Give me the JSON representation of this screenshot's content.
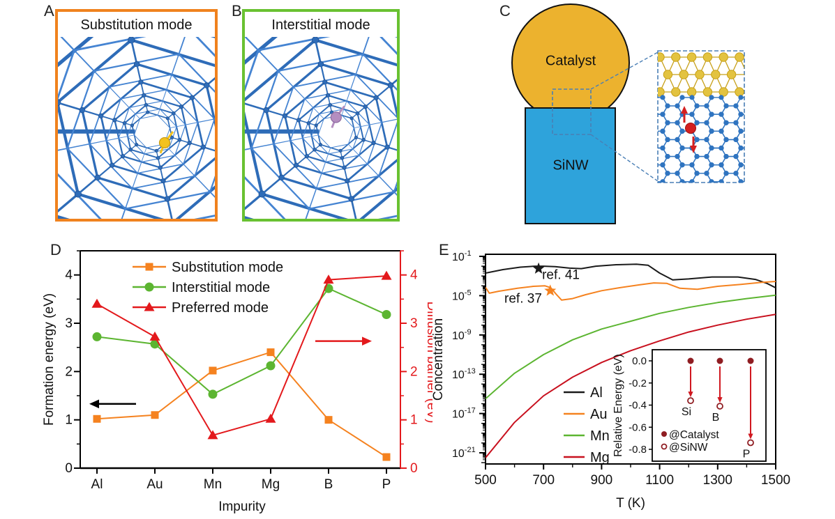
{
  "panels": {
    "a": {
      "label": "A",
      "title": "Substitution mode",
      "border_color": "#F0821E",
      "impurity_color": "#F2C21E",
      "impurity_edge": "#C79A10",
      "impurity_pos": [
        0.68,
        0.72
      ]
    },
    "b": {
      "label": "B",
      "title": "Interstitial mode",
      "border_color": "#69C131",
      "impurity_color": "#B48EC0",
      "impurity_edge": "#8E6BA0",
      "impurity_pos": [
        0.6,
        0.58
      ]
    },
    "c": {
      "label": "C",
      "catalyst_label": "Catalyst",
      "sinw_label": "SiNW",
      "catalyst_color": "#ECB22E",
      "sinw_color": "#2EA3DB",
      "lattice_gold": "#E3C340",
      "lattice_gold_edge": "#C7A018",
      "lattice_blue": "#2F74C0",
      "highlight_atom_color": "#D42020",
      "dashed_color": "#4A7FB5"
    },
    "d": {
      "label": "D"
    },
    "e": {
      "label": "E"
    }
  },
  "chart_data": [
    {
      "id": "panel-d",
      "type": "line",
      "categories": [
        "Al",
        "Au",
        "Mn",
        "Mg",
        "B",
        "P"
      ],
      "xlabel": "Impurity",
      "ylabel_left": "Formation energy (eV)",
      "ylabel_right": "Diffusion barrier (eV)",
      "ylim": [
        0,
        4.5
      ],
      "yticks": [
        0,
        1,
        2,
        3,
        4
      ],
      "axis_right_color": "#E3191C",
      "series": [
        {
          "name": "Substitution mode",
          "color": "#F5821F",
          "marker": "square",
          "values": [
            1.02,
            1.1,
            2.02,
            2.4,
            1.0,
            0.23
          ]
        },
        {
          "name": "Interstitial mode",
          "color": "#5CB531",
          "marker": "circle",
          "values": [
            2.72,
            2.57,
            1.53,
            2.12,
            3.72,
            3.18
          ]
        },
        {
          "name": "Preferred mode",
          "color": "#E3191C",
          "marker": "triangle",
          "values": [
            3.4,
            2.72,
            0.68,
            1.02,
            3.9,
            3.98
          ]
        }
      ],
      "arrows": [
        {
          "direction": "left",
          "color": "#000000",
          "value": 1.33
        },
        {
          "direction": "right",
          "color": "#E3191C",
          "value": 2.63
        }
      ]
    },
    {
      "id": "panel-e",
      "type": "line",
      "xlabel": "T (K)",
      "ylabel": "Concentration",
      "xlim": [
        500,
        1500
      ],
      "xticks": [
        500,
        700,
        900,
        1100,
        1300,
        1500
      ],
      "ytick_exponents": [
        -1,
        -5,
        -9,
        -13,
        -17,
        -21
      ],
      "ylim_exponents": [
        -22.1,
        -1
      ],
      "series": [
        {
          "name": "Al",
          "color": "#1A1A1A",
          "points": [
            [
              500,
              -2.7
            ],
            [
              560,
              -2.35
            ],
            [
              620,
              -2.1
            ],
            [
              670,
              -2.0
            ],
            [
              700,
              -2.0
            ],
            [
              740,
              -2.05
            ],
            [
              790,
              -2.2
            ],
            [
              830,
              -2.25
            ],
            [
              880,
              -2.0
            ],
            [
              950,
              -1.85
            ],
            [
              1020,
              -1.8
            ],
            [
              1060,
              -1.9
            ],
            [
              1100,
              -2.7
            ],
            [
              1145,
              -3.4
            ],
            [
              1200,
              -3.3
            ],
            [
              1280,
              -3.1
            ],
            [
              1370,
              -3.1
            ],
            [
              1430,
              -3.35
            ],
            [
              1470,
              -3.75
            ],
            [
              1500,
              -4.2
            ]
          ]
        },
        {
          "name": "Au",
          "color": "#F5821F",
          "points": [
            [
              500,
              -4.15
            ],
            [
              513,
              -4.75
            ],
            [
              545,
              -4.55
            ],
            [
              610,
              -4.25
            ],
            [
              665,
              -4.05
            ],
            [
              705,
              -4.0
            ],
            [
              725,
              -4.2
            ],
            [
              745,
              -4.9
            ],
            [
              762,
              -5.45
            ],
            [
              800,
              -5.3
            ],
            [
              845,
              -4.9
            ],
            [
              900,
              -4.5
            ],
            [
              960,
              -4.2
            ],
            [
              1030,
              -3.9
            ],
            [
              1080,
              -3.7
            ],
            [
              1125,
              -3.75
            ],
            [
              1170,
              -4.25
            ],
            [
              1230,
              -4.35
            ],
            [
              1300,
              -4.05
            ],
            [
              1380,
              -3.85
            ],
            [
              1450,
              -3.65
            ],
            [
              1500,
              -3.55
            ]
          ]
        },
        {
          "name": "Mn",
          "color": "#5CB531",
          "points": [
            [
              500,
              -15.5
            ],
            [
              600,
              -12.9
            ],
            [
              700,
              -11.0
            ],
            [
              800,
              -9.5
            ],
            [
              900,
              -8.4
            ],
            [
              1000,
              -7.6
            ],
            [
              1100,
              -6.8
            ],
            [
              1200,
              -6.2
            ],
            [
              1300,
              -5.7
            ],
            [
              1400,
              -5.3
            ],
            [
              1500,
              -4.95
            ]
          ]
        },
        {
          "name": "Mg",
          "color": "#C8101E",
          "points": [
            [
              500,
              -21.5
            ],
            [
              600,
              -17.9
            ],
            [
              700,
              -15.2
            ],
            [
              800,
              -13.3
            ],
            [
              900,
              -11.8
            ],
            [
              1000,
              -10.6
            ],
            [
              1100,
              -9.6
            ],
            [
              1200,
              -8.7
            ],
            [
              1300,
              -8.0
            ],
            [
              1400,
              -7.4
            ],
            [
              1500,
              -6.9
            ]
          ]
        }
      ],
      "annotations": [
        {
          "text": "ref. 41",
          "star_color": "#1A1A1A",
          "star_at": [
            683,
            -2.25
          ],
          "text_at": [
            695,
            -3.3
          ]
        },
        {
          "text": "ref. 37",
          "star_color": "#F5821F",
          "star_at": [
            723,
            -4.5
          ],
          "text_at": [
            565,
            -5.7
          ]
        }
      ]
    },
    {
      "id": "panel-e-inset",
      "type": "scatter",
      "ylabel": "Relative Energy (eV)",
      "ylim": [
        -0.9,
        0.08
      ],
      "yticks": [
        0.0,
        -0.2,
        -0.4,
        -0.6,
        -0.8
      ],
      "items": [
        {
          "label": "Si",
          "from": 0.0,
          "to": -0.36
        },
        {
          "label": "B",
          "from": 0.0,
          "to": -0.41
        },
        {
          "label": "P",
          "from": 0.0,
          "to": -0.74
        }
      ],
      "legend": [
        {
          "marker": "filled",
          "label": "@Catalyst"
        },
        {
          "marker": "open",
          "label": "@SiNW"
        }
      ],
      "marker_color": "#8F1D22",
      "arrow_color": "#D01820"
    }
  ]
}
